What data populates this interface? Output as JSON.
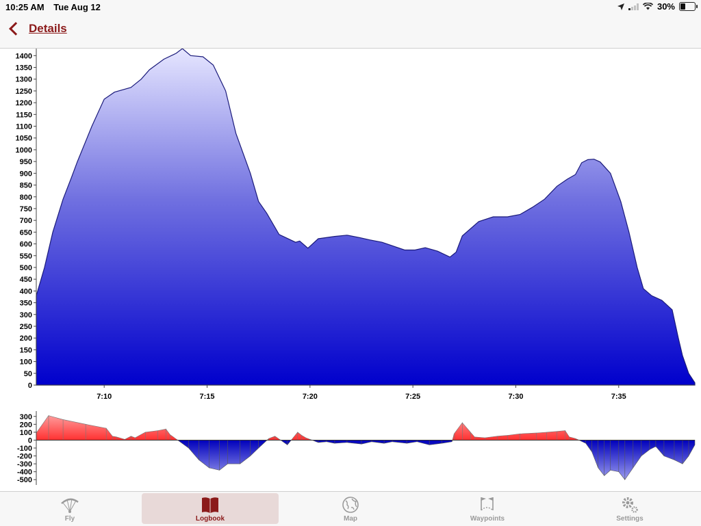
{
  "status_bar": {
    "time": "10:25 AM",
    "date": "Tue Aug 12",
    "battery": "30%"
  },
  "nav": {
    "back_label": "Details"
  },
  "colors": {
    "accent": "#8b1a1a",
    "altitude_fill_top": "#e6e6ff",
    "altitude_fill_bottom": "#0000cc",
    "climb": "#ff5555",
    "sink": "#1111bb"
  },
  "tabs": [
    {
      "label": "Fly",
      "icon": "paraglider-icon",
      "active": false
    },
    {
      "label": "Logbook",
      "icon": "book-icon",
      "active": true
    },
    {
      "label": "Map",
      "icon": "globe-icon",
      "active": false
    },
    {
      "label": "Waypoints",
      "icon": "flags-icon",
      "active": false
    },
    {
      "label": "Settings",
      "icon": "gears-icon",
      "active": false
    }
  ],
  "chart_data": [
    {
      "type": "area",
      "xlabel": "",
      "ylabel": "",
      "x_unit": "minutes",
      "x_range": [
        "7:06.7",
        "7:38.7"
      ],
      "ylim": [
        0,
        1430
      ],
      "x_ticks": [
        "7:10",
        "7:15",
        "7:20",
        "7:25",
        "7:30",
        "7:35"
      ],
      "y_ticks": [
        "0",
        "50",
        "100",
        "150",
        "200",
        "250",
        "300",
        "350",
        "400",
        "450",
        "500",
        "550",
        "600",
        "650",
        "700",
        "750",
        "800",
        "850",
        "900",
        "950",
        "1000",
        "1050",
        "1100",
        "1150",
        "1200",
        "1250",
        "1300",
        "1350",
        "1400"
      ],
      "x": [
        "7:06.7",
        "7:07.1",
        "7:07.5",
        "7:08.0",
        "7:08.4",
        "7:08.7",
        "7:09.4",
        "7:10.0",
        "7:10.5",
        "7:11.3",
        "7:11.8",
        "7:12.2",
        "7:12.9",
        "7:13.5",
        "7:13.8",
        "7:14.2",
        "7:14.8",
        "7:15.3",
        "7:15.9",
        "7:16.4",
        "7:17.1",
        "7:17.5",
        "7:17.9",
        "7:18.5",
        "7:19.3",
        "7:19.5",
        "7:19.9",
        "7:20.4",
        "7:21.2",
        "7:21.8",
        "7:22.4",
        "7:22.9",
        "7:23.5",
        "7:24.0",
        "7:24.6",
        "7:25.1",
        "7:25.6",
        "7:26.2",
        "7:26.8",
        "7:27.1",
        "7:27.4",
        "7:28.2",
        "7:28.9",
        "7:29.6",
        "7:30.2",
        "7:30.8",
        "7:31.4",
        "7:32.0",
        "7:32.5",
        "7:32.9",
        "7:33.2",
        "7:33.5",
        "7:33.8",
        "7:34.1",
        "7:34.6",
        "7:35.1",
        "7:35.5",
        "7:35.9",
        "7:36.2",
        "7:36.6",
        "7:37.1",
        "7:37.6",
        "7:37.9",
        "7:38.1",
        "7:38.4",
        "7:38.7"
      ],
      "values": [
        380,
        500,
        650,
        790,
        880,
        950,
        1100,
        1215,
        1245,
        1265,
        1300,
        1340,
        1385,
        1410,
        1430,
        1400,
        1395,
        1360,
        1250,
        1070,
        900,
        780,
        730,
        640,
        607,
        612,
        582,
        622,
        632,
        637,
        627,
        617,
        607,
        592,
        574,
        574,
        584,
        569,
        544,
        565,
        634,
        695,
        715,
        715,
        725,
        755,
        790,
        845,
        875,
        895,
        945,
        958,
        960,
        948,
        900,
        780,
        650,
        500,
        410,
        380,
        360,
        320,
        200,
        125,
        50,
        10
      ]
    },
    {
      "type": "area",
      "xlabel": "",
      "ylabel": "",
      "ylim": [
        -550,
        350
      ],
      "y_ticks": [
        "300",
        "200",
        "100",
        "0",
        "-100",
        "-200",
        "-300",
        "-400",
        "-500"
      ],
      "x": [
        "7:06.7",
        "7:07.3",
        "7:08.0",
        "7:09.1",
        "7:10.1",
        "7:10.4",
        "7:10.6",
        "7:11.0",
        "7:11.3",
        "7:11.5",
        "7:12.0",
        "7:12.6",
        "7:13.0",
        "7:13.2",
        "7:14.1",
        "7:14.6",
        "7:15.1",
        "7:15.6",
        "7:16.0",
        "7:16.6",
        "7:17.1",
        "7:17.5",
        "7:18.0",
        "7:18.3",
        "7:18.9",
        "7:19.4",
        "7:19.6",
        "7:19.8",
        "7:20.0",
        "7:20.4",
        "7:20.8",
        "7:21.2",
        "7:21.8",
        "7:22.5",
        "7:23.0",
        "7:23.6",
        "7:24.0",
        "7:24.7",
        "7:25.2",
        "7:25.8",
        "7:26.4",
        "7:26.9",
        "7:27.0",
        "7:27.4",
        "7:27.8",
        "7:28.0",
        "7:28.5",
        "7:29.1",
        "7:29.6",
        "7:30.2",
        "7:31.0",
        "7:31.5",
        "7:32.0",
        "7:32.4",
        "7:32.6",
        "7:32.9",
        "7:33.4",
        "7:33.7",
        "7:34.0",
        "7:34.3",
        "7:34.6",
        "7:35.0",
        "7:35.3",
        "7:35.7",
        "7:36.1",
        "7:36.5",
        "7:36.8",
        "7:37.2",
        "7:37.7",
        "7:38.1",
        "7:38.4",
        "7:38.7"
      ],
      "values": [
        90,
        310,
        260,
        200,
        150,
        50,
        40,
        10,
        50,
        30,
        100,
        120,
        140,
        70,
        -100,
        -250,
        -350,
        -380,
        -300,
        -300,
        -200,
        -100,
        20,
        50,
        -60,
        100,
        60,
        30,
        10,
        -30,
        -20,
        -40,
        -30,
        -50,
        -20,
        -40,
        -20,
        -40,
        -20,
        -60,
        -40,
        -20,
        80,
        220,
        100,
        40,
        30,
        50,
        60,
        80,
        90,
        100,
        110,
        120,
        40,
        20,
        -40,
        -150,
        -350,
        -450,
        -380,
        -400,
        -500,
        -350,
        -200,
        -120,
        -80,
        -200,
        -250,
        -300,
        -200,
        -60
      ]
    }
  ]
}
